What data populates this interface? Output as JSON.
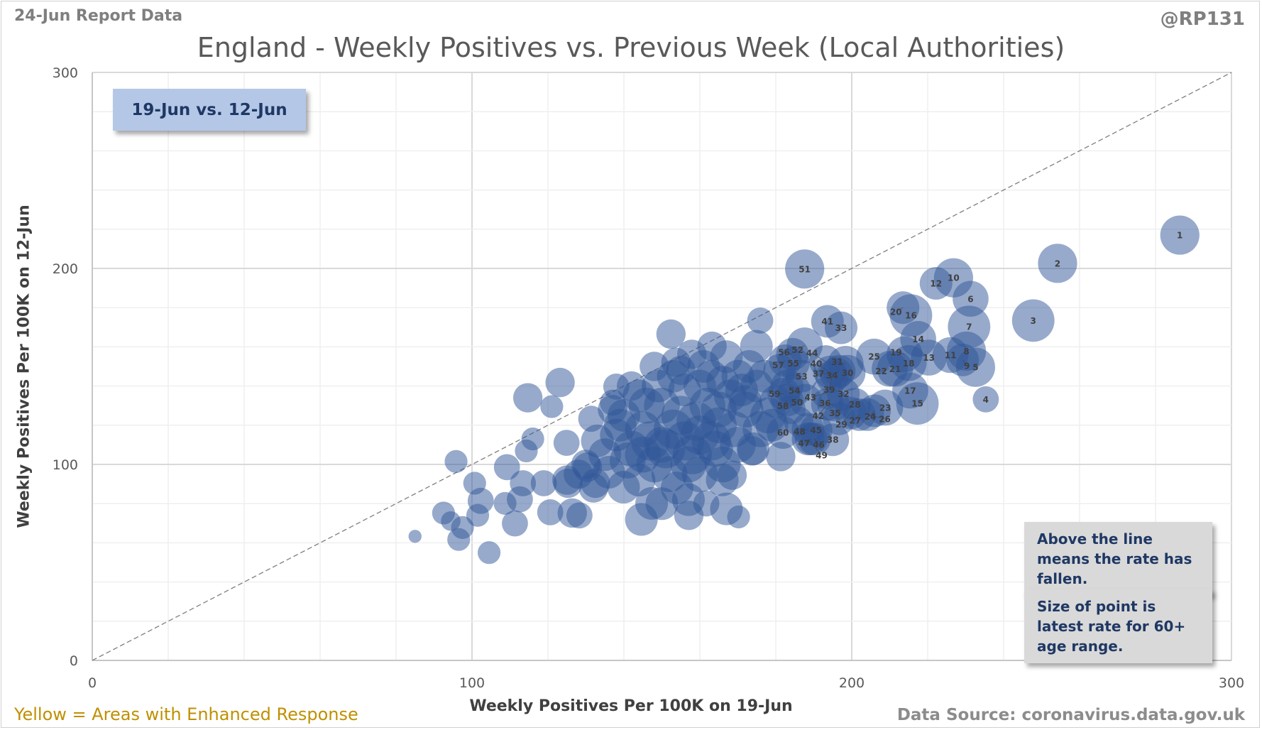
{
  "header": {
    "report_date": "24-Jun Report Data",
    "handle": "@RP131"
  },
  "footer": {
    "enhanced_note": "Yellow = Areas with Enhanced  Response",
    "source": "Data Source: coronavirus.data.gov.uk"
  },
  "notes": [
    "Above the line means the rate has fallen.",
    "Size of point is latest rate for 60+ age range."
  ],
  "chart_data": {
    "type": "scatter",
    "subtype": "bubble",
    "title": "England - Weekly Positives vs. Previous Week (Local Authorities)",
    "legend_label": "19-Jun vs. 12-Jun",
    "xlabel": "Weekly Positives Per 100K on 19-Jun",
    "ylabel": "Weekly Positives Per 100K on 12-Jun",
    "xlim": [
      0,
      300
    ],
    "ylim": [
      0,
      300
    ],
    "xticks": [
      0,
      100,
      200,
      300
    ],
    "yticks": [
      0,
      100,
      200,
      300
    ],
    "grid": true,
    "reference_line": "y = x (dashed)",
    "color": "#2f5597",
    "labeled_points": [
      {
        "label": "1",
        "x": 286.4,
        "y": 217,
        "s": 12
      },
      {
        "label": "2",
        "x": 254.2,
        "y": 202.6,
        "s": 12
      },
      {
        "label": "3",
        "x": 247.8,
        "y": 173.4,
        "s": 13
      },
      {
        "label": "4",
        "x": 235.3,
        "y": 133.2,
        "s": 8
      },
      {
        "label": "5",
        "x": 232.6,
        "y": 149.6,
        "s": 12
      },
      {
        "label": "6",
        "x": 231.3,
        "y": 184.5,
        "s": 11
      },
      {
        "label": "7",
        "x": 230.9,
        "y": 170.2,
        "s": 13
      },
      {
        "label": "8",
        "x": 230.2,
        "y": 157.8,
        "s": 12
      },
      {
        "label": "9",
        "x": 229.2,
        "y": 153.3,
        "s": 10
      },
      {
        "label": "10",
        "x": 226.8,
        "y": 195.2,
        "s": 12
      },
      {
        "label": "11",
        "x": 226,
        "y": 155.8,
        "s": 11
      },
      {
        "label": "12",
        "x": 222.2,
        "y": 192.4,
        "s": 10
      },
      {
        "label": "13",
        "x": 220.3,
        "y": 154.5,
        "s": 11
      },
      {
        "label": "14",
        "x": 217.5,
        "y": 164,
        "s": 11
      },
      {
        "label": "15",
        "x": 217.3,
        "y": 131.1,
        "s": 13
      },
      {
        "label": "16",
        "x": 215.6,
        "y": 176,
        "s": 13
      },
      {
        "label": "17",
        "x": 215.4,
        "y": 137.7,
        "s": 11
      },
      {
        "label": "18",
        "x": 215,
        "y": 151.7,
        "s": 11
      },
      {
        "label": "19",
        "x": 213.9,
        "y": 156.2,
        "s": 11
      },
      {
        "label": "20",
        "x": 213.5,
        "y": 180,
        "s": 10
      },
      {
        "label": "21",
        "x": 211.4,
        "y": 148.8,
        "s": 11
      },
      {
        "label": "22",
        "x": 210,
        "y": 148.8,
        "s": 11
      },
      {
        "label": "23",
        "x": 208.8,
        "y": 129,
        "s": 11
      },
      {
        "label": "24",
        "x": 206,
        "y": 127.4,
        "s": 10
      },
      {
        "label": "25",
        "x": 205.9,
        "y": 155,
        "s": 11
      },
      {
        "label": "26",
        "x": 204.2,
        "y": 125.4,
        "s": 10
      },
      {
        "label": "27",
        "x": 202,
        "y": 125.4,
        "s": 10
      },
      {
        "label": "28",
        "x": 200.8,
        "y": 130.7,
        "s": 10
      },
      {
        "label": "29",
        "x": 199.7,
        "y": 126.2,
        "s": 10
      },
      {
        "label": "30",
        "x": 198.9,
        "y": 146.7,
        "s": 11
      },
      {
        "label": "31",
        "x": 198.4,
        "y": 151.3,
        "s": 11
      },
      {
        "label": "32",
        "x": 197.8,
        "y": 136,
        "s": 10
      },
      {
        "label": "33",
        "x": 197.2,
        "y": 169.7,
        "s": 10
      },
      {
        "label": "34",
        "x": 196.7,
        "y": 147.6,
        "s": 10
      },
      {
        "label": "35",
        "x": 196.7,
        "y": 123.3,
        "s": 10
      },
      {
        "label": "36",
        "x": 195.2,
        "y": 130.3,
        "s": 10
      },
      {
        "label": "37",
        "x": 195.9,
        "y": 146.3,
        "s": 10
      },
      {
        "label": "38",
        "x": 195,
        "y": 112.6,
        "s": 10
      },
      {
        "label": "39",
        "x": 194.8,
        "y": 144.7,
        "s": 10
      },
      {
        "label": "40",
        "x": 194.2,
        "y": 147.1,
        "s": 10
      },
      {
        "label": "41",
        "x": 193.6,
        "y": 173,
        "s": 10
      },
      {
        "label": "42",
        "x": 193.6,
        "y": 130.7,
        "s": 10
      },
      {
        "label": "43",
        "x": 193.6,
        "y": 136.5,
        "s": 10
      },
      {
        "label": "44",
        "x": 193.1,
        "y": 152.5,
        "s": 10
      },
      {
        "label": "45",
        "x": 190.6,
        "y": 117.5,
        "s": 10
      },
      {
        "label": "46",
        "x": 190.2,
        "y": 113,
        "s": 10
      },
      {
        "label": "47",
        "x": 189.3,
        "y": 113,
        "s": 10
      },
      {
        "label": "48",
        "x": 188.5,
        "y": 118,
        "s": 10
      },
      {
        "label": "49",
        "x": 188.5,
        "y": 113,
        "s": 10
      },
      {
        "label": "50",
        "x": 187.8,
        "y": 132.8,
        "s": 10
      },
      {
        "label": "51",
        "x": 187.6,
        "y": 199.7,
        "s": 12
      },
      {
        "label": "52",
        "x": 187.6,
        "y": 160.7,
        "s": 11
      },
      {
        "label": "53",
        "x": 186.8,
        "y": 145,
        "s": 10
      },
      {
        "label": "54",
        "x": 184.9,
        "y": 137.7,
        "s": 10
      },
      {
        "label": "55",
        "x": 184.6,
        "y": 151.7,
        "s": 10
      },
      {
        "label": "56",
        "x": 184.4,
        "y": 156.2,
        "s": 10
      },
      {
        "label": "57",
        "x": 182.5,
        "y": 152.9,
        "s": 10
      },
      {
        "label": "58",
        "x": 183,
        "y": 132.8,
        "s": 10
      },
      {
        "label": "59",
        "x": 182.1,
        "y": 136,
        "s": 10
      },
      {
        "label": "60",
        "x": 181.9,
        "y": 116.3,
        "s": 10
      }
    ],
    "points": [
      [
        85,
        63.3,
        4
      ],
      [
        95.8,
        101.5,
        7
      ],
      [
        92.5,
        75.2,
        7
      ],
      [
        94.4,
        71.1,
        6
      ],
      [
        96.5,
        61.7,
        7
      ],
      [
        97.5,
        67.8,
        7
      ],
      [
        102.3,
        81.4,
        8
      ],
      [
        101.5,
        74,
        7
      ],
      [
        104.5,
        55,
        7
      ],
      [
        100.7,
        90.4,
        7
      ],
      [
        109.2,
        98.6,
        8
      ],
      [
        108.7,
        80.1,
        7
      ],
      [
        111.3,
        69.9,
        8
      ],
      [
        114.7,
        134,
        9
      ],
      [
        114.3,
        106.9,
        7
      ],
      [
        116,
        113,
        7
      ],
      [
        112.6,
        82.2,
        8
      ],
      [
        113.4,
        90.4,
        8
      ],
      [
        121,
        129.5,
        7
      ],
      [
        123.2,
        141.8,
        9
      ],
      [
        120.6,
        75.6,
        8
      ],
      [
        118.9,
        90.4,
        8
      ],
      [
        124.9,
        111,
        8
      ],
      [
        125.3,
        90.4,
        9
      ],
      [
        126.4,
        75.2,
        9
      ],
      [
        128.3,
        74,
        8
      ],
      [
        130.4,
        98.6,
        9
      ],
      [
        132.5,
        90.4,
        9
      ],
      [
        131.4,
        123.3,
        8
      ],
      [
        138,
        139.7,
        8
      ],
      [
        137.1,
        131.5,
        8
      ],
      [
        139.9,
        88.4,
        10
      ],
      [
        144.6,
        71.9,
        10
      ],
      [
        147.3,
        80.1,
        10
      ],
      [
        152.4,
        166.5,
        9
      ],
      [
        157.1,
        74,
        9
      ],
      [
        161.7,
        80.1,
        8
      ],
      [
        167,
        77.3,
        10
      ],
      [
        170.2,
        73.2,
        7
      ],
      [
        175.9,
        173.4,
        8
      ],
      [
        174.9,
        160.3,
        10
      ],
      [
        181.3,
        104,
        9
      ],
      [
        173.8,
        106.9,
        9
      ],
      [
        168.5,
        94.5,
        9
      ],
      [
        165.9,
        92.1,
        10
      ],
      [
        163.2,
        160.3,
        9
      ],
      [
        157.9,
        156.2,
        9
      ],
      [
        153.7,
        152.1,
        9
      ],
      [
        150,
        110,
        11
      ],
      [
        145,
        118,
        11
      ],
      [
        155,
        125,
        12
      ],
      [
        160,
        115,
        12
      ],
      [
        165,
        120,
        11
      ],
      [
        158,
        105,
        12
      ],
      [
        148,
        100,
        11
      ],
      [
        152,
        95,
        11
      ],
      [
        162,
        130,
        11
      ],
      [
        168,
        135,
        10
      ],
      [
        172,
        128,
        11
      ],
      [
        175,
        140,
        10
      ],
      [
        170,
        110,
        11
      ],
      [
        142,
        108,
        11
      ],
      [
        138,
        115,
        10
      ],
      [
        135,
        105,
        10
      ],
      [
        140,
        125,
        10
      ],
      [
        146,
        130,
        11
      ],
      [
        156,
        138,
        10
      ],
      [
        163,
        145,
        10
      ],
      [
        178,
        125,
        11
      ],
      [
        180,
        132,
        10
      ],
      [
        176,
        118,
        11
      ],
      [
        166,
        100,
        11
      ],
      [
        160,
        95,
        11
      ],
      [
        154,
        88,
        10
      ],
      [
        144,
        92,
        10
      ],
      [
        150,
        80,
        10
      ],
      [
        157,
        82,
        10
      ],
      [
        164,
        108,
        11
      ],
      [
        170,
        145,
        10
      ],
      [
        173,
        150,
        10
      ],
      [
        167,
        155,
        10
      ],
      [
        161,
        150,
        10
      ],
      [
        153,
        145,
        10
      ],
      [
        149,
        140,
        10
      ],
      [
        144,
        135,
        10
      ],
      [
        139,
        120,
        10
      ],
      [
        133,
        112,
        10
      ],
      [
        130,
        100,
        9
      ],
      [
        128,
        95,
        9
      ],
      [
        125,
        92,
        9
      ],
      [
        132,
        88,
        9
      ],
      [
        136,
        96,
        10
      ],
      [
        141,
        102,
        11
      ],
      [
        147,
        112,
        12
      ],
      [
        153,
        118,
        12
      ],
      [
        159,
        122,
        12
      ],
      [
        165,
        128,
        11
      ],
      [
        171,
        138,
        10
      ],
      [
        177,
        145,
        10
      ],
      [
        181,
        148,
        10
      ],
      [
        183,
        140,
        10
      ],
      [
        179,
        120,
        10
      ],
      [
        174,
        108,
        10
      ],
      [
        169,
        118,
        11
      ],
      [
        163,
        112,
        12
      ],
      [
        157,
        100,
        11
      ],
      [
        151,
        108,
        12
      ],
      [
        145,
        105,
        11
      ],
      [
        137,
        128,
        9
      ],
      [
        142,
        140,
        9
      ],
      [
        148,
        150,
        9
      ],
      [
        155,
        148,
        9
      ],
      [
        160,
        140,
        10
      ],
      [
        166,
        142,
        10
      ],
      [
        172,
        132,
        10
      ],
      [
        184,
        128,
        9
      ],
      [
        186,
        122,
        9
      ],
      [
        150,
        130,
        11
      ],
      [
        156,
        112,
        12
      ]
    ]
  }
}
